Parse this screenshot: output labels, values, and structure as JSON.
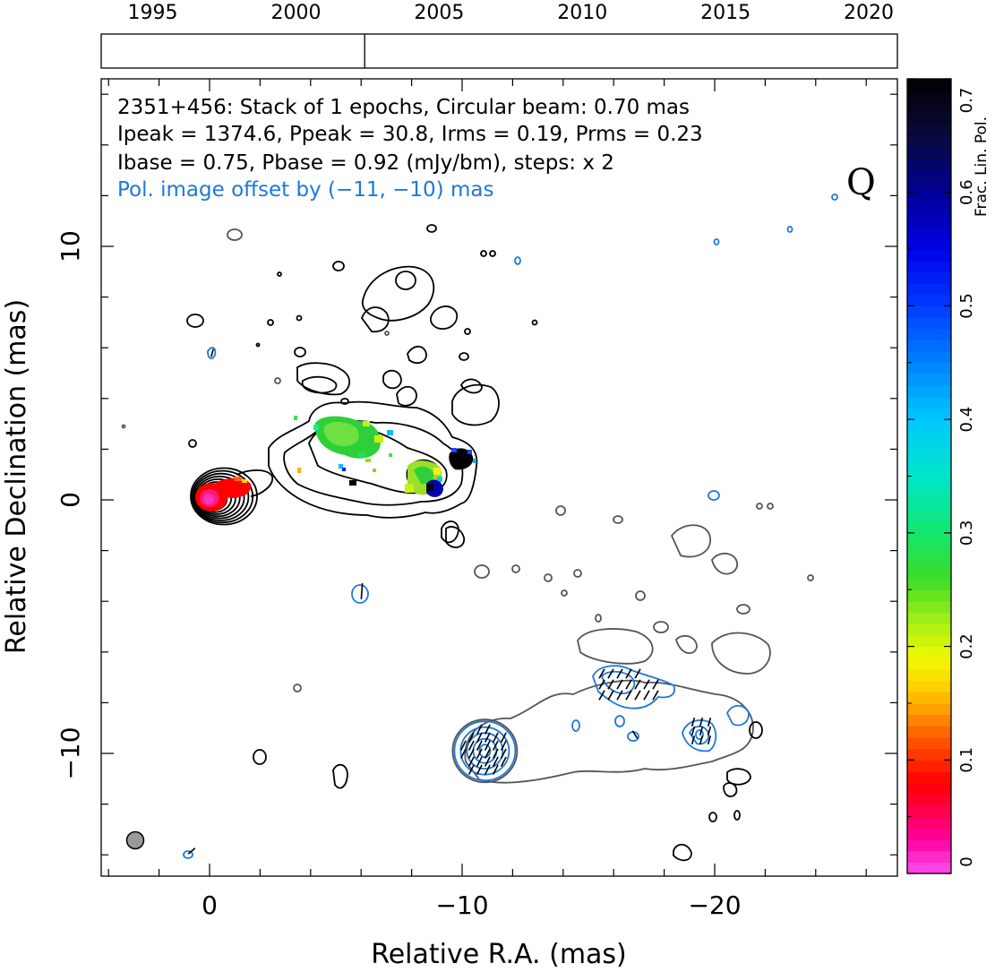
{
  "chart_data": {
    "type": "contour",
    "source": "2351+456",
    "annotation_lines": [
      "2351+456: Stack of 1 epochs, Circular beam: 0.70 mas",
      "Ipeak = 1374.6, Ppeak = 30.8, Irms = 0.19, Prms = 0.23",
      "Ibase = 0.75, Pbase = 0.92 (mJy/bm), steps: x 2"
    ],
    "pol_offset_note": "Pol. image offset by (−11, −10) mas",
    "quality_letter": "Q",
    "xlabel": "Relative R.A. (mas)",
    "ylabel": "Relative Declination (mas)",
    "xlim": [
      4.1,
      -27.4
    ],
    "ylim": [
      -14.7,
      16.5
    ],
    "x_ticks": [
      0,
      -10,
      -20
    ],
    "x_tick_labels": [
      "0",
      "−10",
      "−20"
    ],
    "y_ticks": [
      10,
      0,
      -10
    ],
    "y_tick_labels": [
      "10",
      "0",
      "−10"
    ],
    "timeline": {
      "years": [
        "1995",
        "2000",
        "2005",
        "2010",
        "2015",
        "2020"
      ],
      "range": [
        1993.2,
        2021.0
      ],
      "epochs": [
        2002.4
      ]
    },
    "colorbar": {
      "label": "Frac. Lin. Pol.",
      "range": [
        0,
        0.7
      ],
      "ticks": [
        "0",
        "0.1",
        "0.2",
        "0.3",
        "0.4",
        "0.5",
        "0.6",
        "0.7"
      ]
    },
    "beam_mas": 0.7,
    "total_intensity_core": {
      "ra": 0,
      "dec": 0
    },
    "fractional_pol_patches": [
      {
        "ra": -0.8,
        "dec": 0.4,
        "value": 0.04
      },
      {
        "ra": -5.7,
        "dec": 2.6,
        "value": 0.27
      },
      {
        "ra": -8.6,
        "dec": 1.1,
        "value": 0.24
      },
      {
        "ra": -9.2,
        "dec": 0.5,
        "value": 0.55
      },
      {
        "ra": -9.9,
        "dec": 1.5,
        "value": 0.7
      }
    ]
  },
  "colors": {
    "intensity_contours": "#000000",
    "offset_intensity_contours": "#555555",
    "pol_contours": "#1e78dc",
    "pol_text": "#1e78dc"
  }
}
